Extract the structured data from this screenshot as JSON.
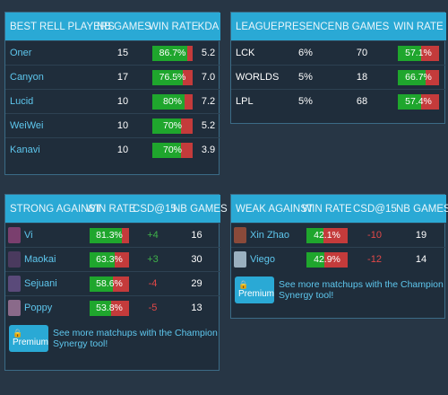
{
  "best_players": {
    "headers": [
      "BEST RELL PLAYERS",
      "NB GAMES",
      "WIN RATE",
      "KDA"
    ],
    "rows": [
      {
        "name": "Oner",
        "games": "15",
        "win_rate": "86.7%",
        "win_fraction": 0.867,
        "kda": "5.2"
      },
      {
        "name": "Canyon",
        "games": "17",
        "win_rate": "76.5%",
        "win_fraction": 0.765,
        "kda": "7.0"
      },
      {
        "name": "Lucid",
        "games": "10",
        "win_rate": "80%",
        "win_fraction": 0.8,
        "kda": "7.2"
      },
      {
        "name": "WeiWei",
        "games": "10",
        "win_rate": "70%",
        "win_fraction": 0.7,
        "kda": "5.2"
      },
      {
        "name": "Kanavi",
        "games": "10",
        "win_rate": "70%",
        "win_fraction": 0.7,
        "kda": "3.9"
      }
    ]
  },
  "leagues": {
    "headers": [
      "LEAGUE",
      "PRESENCE",
      "NB GAMES",
      "WIN RATE"
    ],
    "rows": [
      {
        "name": "LCK",
        "presence": "6%",
        "games": "70",
        "win_rate": "57.1%",
        "win_fraction": 0.571
      },
      {
        "name": "WORLDS",
        "presence": "5%",
        "games": "18",
        "win_rate": "66.7%",
        "win_fraction": 0.667
      },
      {
        "name": "LPL",
        "presence": "5%",
        "games": "68",
        "win_rate": "57.4%",
        "win_fraction": 0.574
      }
    ]
  },
  "strong_against": {
    "headers": [
      "STRONG AGAINST",
      "WIN RATE",
      "CSD@15",
      "NB GAMES"
    ],
    "rows": [
      {
        "name": "Vi",
        "icon": "vi-portrait-icon",
        "icon_color": "#7a3f6e",
        "win_rate": "81.3%",
        "win_fraction": 0.813,
        "csd": "+4",
        "csd_sign": "pos",
        "games": "16"
      },
      {
        "name": "Maokai",
        "icon": "maokai-portrait-icon",
        "icon_color": "#4a3a5e",
        "win_rate": "63.3%",
        "win_fraction": 0.633,
        "csd": "+3",
        "csd_sign": "pos",
        "games": "30"
      },
      {
        "name": "Sejuani",
        "icon": "sejuani-portrait-icon",
        "icon_color": "#5a4a7a",
        "win_rate": "58.6%",
        "win_fraction": 0.586,
        "csd": "-4",
        "csd_sign": "neg",
        "games": "29"
      },
      {
        "name": "Poppy",
        "icon": "poppy-portrait-icon",
        "icon_color": "#8a6a8a",
        "win_rate": "53.8%",
        "win_fraction": 0.538,
        "csd": "-5",
        "csd_sign": "neg",
        "games": "13"
      }
    ],
    "premium_label": "Premium",
    "premium_text": "See more matchups with the Champion Synergy tool!"
  },
  "weak_against": {
    "headers": [
      "WEAK AGAINST",
      "WIN RATE",
      "CSD@15",
      "NB GAMES"
    ],
    "rows": [
      {
        "name": "Xin Zhao",
        "icon": "xin-zhao-portrait-icon",
        "icon_color": "#8a4a3a",
        "win_rate": "42.1%",
        "win_fraction": 0.421,
        "csd": "-10",
        "csd_sign": "neg",
        "games": "19"
      },
      {
        "name": "Viego",
        "icon": "viego-portrait-icon",
        "icon_color": "#9ab0c0",
        "win_rate": "42.9%",
        "win_fraction": 0.429,
        "csd": "-12",
        "csd_sign": "neg",
        "games": "14"
      }
    ],
    "premium_label": "Premium",
    "premium_text": "See more matchups with the Champion Synergy tool!"
  },
  "colors": {
    "header_bg": "#2aa9d5",
    "panel_bg": "#1f2d3b",
    "win_green": "#1fa62d",
    "loss_red": "#c43b3b",
    "link_blue": "#5ec7ee"
  }
}
